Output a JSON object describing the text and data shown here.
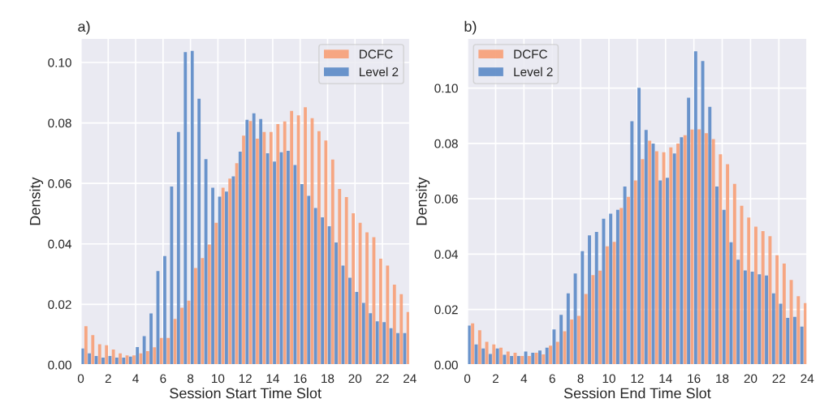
{
  "chart_data": [
    {
      "type": "histogram",
      "title": "a)",
      "xlabel": "Session Start Time Slot",
      "ylabel": "Density",
      "bins": [
        0,
        0.5,
        1,
        1.5,
        2,
        2.5,
        3,
        3.5,
        4,
        4.5,
        5,
        5.5,
        6,
        6.5,
        7,
        7.5,
        8,
        8.5,
        9,
        9.5,
        10,
        10.5,
        11,
        11.5,
        12,
        12.5,
        13,
        13.5,
        14,
        14.5,
        15,
        15.5,
        16,
        16.5,
        17,
        17.5,
        18,
        18.5,
        19,
        19.5,
        20,
        20.5,
        21,
        21.5,
        22,
        22.5,
        23,
        23.5,
        24
      ],
      "series": [
        {
          "name": "DCFC",
          "color": "#f79f75",
          "values": [
            0.0128,
            0.0098,
            0.0068,
            0.0065,
            0.0051,
            0.0038,
            0.0031,
            0.0031,
            0.0038,
            0.0045,
            0.0058,
            0.0089,
            0.0089,
            0.0152,
            0.0189,
            0.0212,
            0.032,
            0.0353,
            0.0398,
            0.047,
            0.0586,
            0.0616,
            0.0667,
            0.0758,
            0.0806,
            0.0748,
            0.077,
            0.077,
            0.0796,
            0.0805,
            0.084,
            0.0825,
            0.0852,
            0.0816,
            0.0773,
            0.0742,
            0.0679,
            0.0582,
            0.0555,
            0.0501,
            0.047,
            0.0438,
            0.0422,
            0.0351,
            0.0328,
            0.0265,
            0.0234,
            0.0175
          ]
        },
        {
          "name": "Level 2",
          "color": "#5b8ac6",
          "values": [
            0.0054,
            0.0038,
            0.0029,
            0.0024,
            0.0029,
            0.0024,
            0.0024,
            0.0027,
            0.0059,
            0.0095,
            0.017,
            0.031,
            0.036,
            0.059,
            0.077,
            0.1034,
            0.1038,
            0.088,
            0.068,
            0.0586,
            0.0556,
            0.0573,
            0.0623,
            0.0705,
            0.081,
            0.0832,
            0.0813,
            0.07,
            0.0672,
            0.0703,
            0.0708,
            0.0661,
            0.0598,
            0.0559,
            0.0519,
            0.0488,
            0.0458,
            0.0405,
            0.0328,
            0.0288,
            0.0241,
            0.0205,
            0.0171,
            0.0144,
            0.0141,
            0.0121,
            0.0105,
            0.0105
          ]
        }
      ],
      "xlim": [
        0,
        24
      ],
      "ylim": [
        0,
        0.108
      ],
      "xticks": [
        0,
        2,
        4,
        6,
        8,
        10,
        12,
        14,
        16,
        18,
        20,
        22,
        24
      ],
      "yticks": [
        {
          "value": 0,
          "label": "0.00"
        },
        {
          "value": 0.02,
          "label": "0.02"
        },
        {
          "value": 0.04,
          "label": "0.04"
        },
        {
          "value": 0.06,
          "label": "0.06"
        },
        {
          "value": 0.08,
          "label": "0.08"
        },
        {
          "value": 0.1,
          "label": "0.10"
        }
      ],
      "grid": true,
      "legend": "top right"
    },
    {
      "type": "histogram",
      "title": "b)",
      "xlabel": "Session End Time Slot",
      "ylabel": "Density",
      "bins": [
        0,
        0.5,
        1,
        1.5,
        2,
        2.5,
        3,
        3.5,
        4,
        4.5,
        5,
        5.5,
        6,
        6.5,
        7,
        7.5,
        8,
        8.5,
        9,
        9.5,
        10,
        10.5,
        11,
        11.5,
        12,
        12.5,
        13,
        13.5,
        14,
        14.5,
        15,
        15.5,
        16,
        16.5,
        17,
        17.5,
        18,
        18.5,
        19,
        19.5,
        20,
        20.5,
        21,
        21.5,
        22,
        22.5,
        23,
        23.5,
        24
      ],
      "series": [
        {
          "name": "DCFC",
          "color": "#f79f75",
          "values": [
            0.015,
            0.0125,
            0.0083,
            0.0074,
            0.0062,
            0.0048,
            0.0044,
            0.0032,
            0.0032,
            0.0044,
            0.0038,
            0.0069,
            0.0083,
            0.0121,
            0.0164,
            0.0177,
            0.0256,
            0.0324,
            0.034,
            0.0428,
            0.0444,
            0.0567,
            0.0607,
            0.0666,
            0.0743,
            0.081,
            0.0772,
            0.0768,
            0.0786,
            0.08,
            0.083,
            0.085,
            0.0851,
            0.0837,
            0.0816,
            0.0761,
            0.0725,
            0.0654,
            0.0575,
            0.0532,
            0.0499,
            0.0483,
            0.0465,
            0.0396,
            0.0366,
            0.0307,
            0.0248,
            0.0223
          ]
        },
        {
          "name": "Level 2",
          "color": "#5b8ac6",
          "values": [
            0.0142,
            0.0074,
            0.0059,
            0.0039,
            0.0059,
            0.0036,
            0.0032,
            0.0032,
            0.0048,
            0.0044,
            0.0052,
            0.0062,
            0.0128,
            0.0181,
            0.0258,
            0.033,
            0.0411,
            0.0468,
            0.048,
            0.0528,
            0.0546,
            0.056,
            0.0644,
            0.088,
            0.1001,
            0.0849,
            0.08,
            0.0666,
            0.0676,
            0.0764,
            0.0822,
            0.0965,
            0.1133,
            0.1098,
            0.0932,
            0.0644,
            0.056,
            0.0443,
            0.038,
            0.0341,
            0.0337,
            0.0327,
            0.0323,
            0.0258,
            0.0221,
            0.017,
            0.0173,
            0.0138
          ]
        }
      ],
      "xlim": [
        0,
        24
      ],
      "ylim": [
        0,
        0.118
      ],
      "xticks": [
        0,
        2,
        4,
        6,
        8,
        10,
        12,
        14,
        16,
        18,
        20,
        22,
        24
      ],
      "yticks": [
        {
          "value": 0,
          "label": "0.00"
        },
        {
          "value": 0.02,
          "label": "0.02"
        },
        {
          "value": 0.04,
          "label": "0.04"
        },
        {
          "value": 0.06,
          "label": "0.06"
        },
        {
          "value": 0.08,
          "label": "0.08"
        },
        {
          "value": 0.1,
          "label": "0.10"
        }
      ],
      "grid": true,
      "legend": "top left"
    }
  ]
}
